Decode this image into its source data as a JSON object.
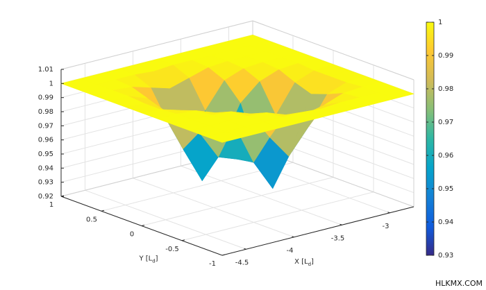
{
  "chart_data": {
    "type": "surface",
    "x": [
      -4.75,
      -4.55,
      -4.35,
      -4.15,
      -3.95,
      -3.75,
      -3.55,
      -3.35,
      -3.15,
      -2.95,
      -2.75
    ],
    "y": [
      -1,
      -0.8,
      -0.6,
      -0.4,
      -0.2,
      0,
      0.2,
      0.4,
      0.6,
      0.8,
      1
    ],
    "z": [
      [
        1,
        1,
        1,
        1,
        1,
        1,
        1,
        1,
        1,
        1,
        1
      ],
      [
        1,
        1,
        1,
        1,
        1,
        1,
        0.999,
        1,
        1,
        1,
        1
      ],
      [
        1,
        1,
        1,
        1,
        0.999,
        0.994,
        0.991,
        0.994,
        0.999,
        1,
        1
      ],
      [
        1,
        1,
        1,
        0.999,
        0.994,
        0.974,
        0.957,
        0.974,
        0.994,
        0.999,
        1
      ],
      [
        1,
        1,
        0.999,
        0.994,
        0.982,
        0.952,
        0.93,
        0.957,
        0.99,
        0.999,
        1
      ],
      [
        1,
        0.999,
        0.995,
        0.976,
        0.955,
        0.95,
        0.952,
        0.974,
        0.994,
        0.999,
        1
      ],
      [
        1,
        0.999,
        0.991,
        0.96,
        0.934,
        0.955,
        0.982,
        0.994,
        0.999,
        1,
        1
      ],
      [
        1,
        1,
        0.995,
        0.976,
        0.96,
        0.976,
        0.994,
        0.999,
        1,
        1,
        1
      ],
      [
        1,
        1,
        0.999,
        0.995,
        0.991,
        0.995,
        0.999,
        1,
        1,
        1,
        1
      ],
      [
        1,
        1,
        1,
        1,
        0.999,
        1,
        1,
        1,
        1,
        1,
        1
      ],
      [
        1,
        1,
        1,
        1,
        1,
        1,
        1,
        1,
        1,
        1,
        1
      ]
    ],
    "xlim": [
      -4.75,
      -2.75
    ],
    "ylim": [
      -1,
      1
    ],
    "zlim": [
      0.92,
      1.01
    ],
    "xticks": [
      -4.5,
      -4,
      -3.5,
      -3
    ],
    "yticks": [
      -1,
      -0.5,
      0,
      0.5,
      1
    ],
    "zticks": [
      0.92,
      0.93,
      0.94,
      0.95,
      0.96,
      0.97,
      0.98,
      0.99,
      1,
      1.01
    ],
    "xlabel": [
      "X [L",
      "d",
      "]"
    ],
    "ylabel": [
      "Y [L",
      "d",
      "]"
    ],
    "colorbar": {
      "clim": [
        0.93,
        1
      ],
      "ticks": [
        0.93,
        0.94,
        0.95,
        0.96,
        0.97,
        0.98,
        0.99,
        1
      ]
    },
    "colormap": [
      "#352a87",
      "#0f5cdd",
      "#1481d6",
      "#06a4ca",
      "#2eb7a4",
      "#87bf77",
      "#d1bb59",
      "#fec832",
      "#f9fb0e"
    ],
    "grid": true
  },
  "watermark": "HLKMX.COM"
}
